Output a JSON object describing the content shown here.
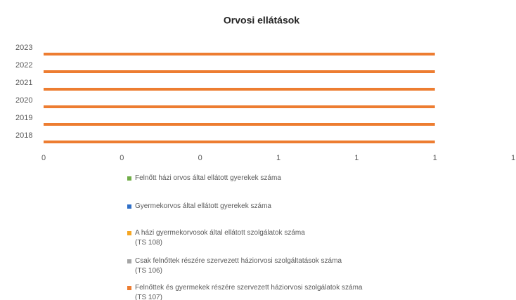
{
  "chart_data": {
    "type": "hbar",
    "title": "Orvosi ellátások",
    "categories": [
      "2018",
      "2019",
      "2020",
      "2021",
      "2022",
      "2023"
    ],
    "series": [
      {
        "name": "Felnőtt házi orvos által ellátott gyerekek száma",
        "color": "#70ad47",
        "values": [
          0,
          0,
          0,
          0,
          0,
          0
        ]
      },
      {
        "name": "Gyermekorvos által ellátott gyerekek száma",
        "color": "#2f6fc7",
        "values": [
          0,
          0,
          0,
          0,
          0,
          0
        ]
      },
      {
        "name": "A házi gyermekorvosok által ellátott szolgálatok száma\n(TS 108)",
        "color": "#f5a623",
        "values": [
          0,
          0,
          0,
          0,
          0,
          0
        ]
      },
      {
        "name": "Csak felnőttek részére szervezett háziorvosi szolgáltatások száma\n(TS 106)",
        "color": "#a5a5a5",
        "values": [
          0,
          0,
          0,
          0,
          0,
          0
        ]
      },
      {
        "name": "Felnőttek és gyermekek részére szervezett háziorvosi szolgálatok száma\n(TS 107)",
        "color": "#ed7d31",
        "values": [
          1,
          1,
          1,
          1,
          1,
          1
        ]
      }
    ],
    "xlim": [
      0,
      1.2
    ],
    "xticks": [
      0,
      {
        "value": 0.2,
        "label": "0"
      },
      {
        "value": 0.4,
        "label": "0"
      },
      {
        "value": 0.6,
        "label": "1"
      },
      {
        "value": 0.8,
        "label": "1"
      },
      1,
      {
        "value": 1.2,
        "label": "1"
      }
    ],
    "grid": false
  }
}
